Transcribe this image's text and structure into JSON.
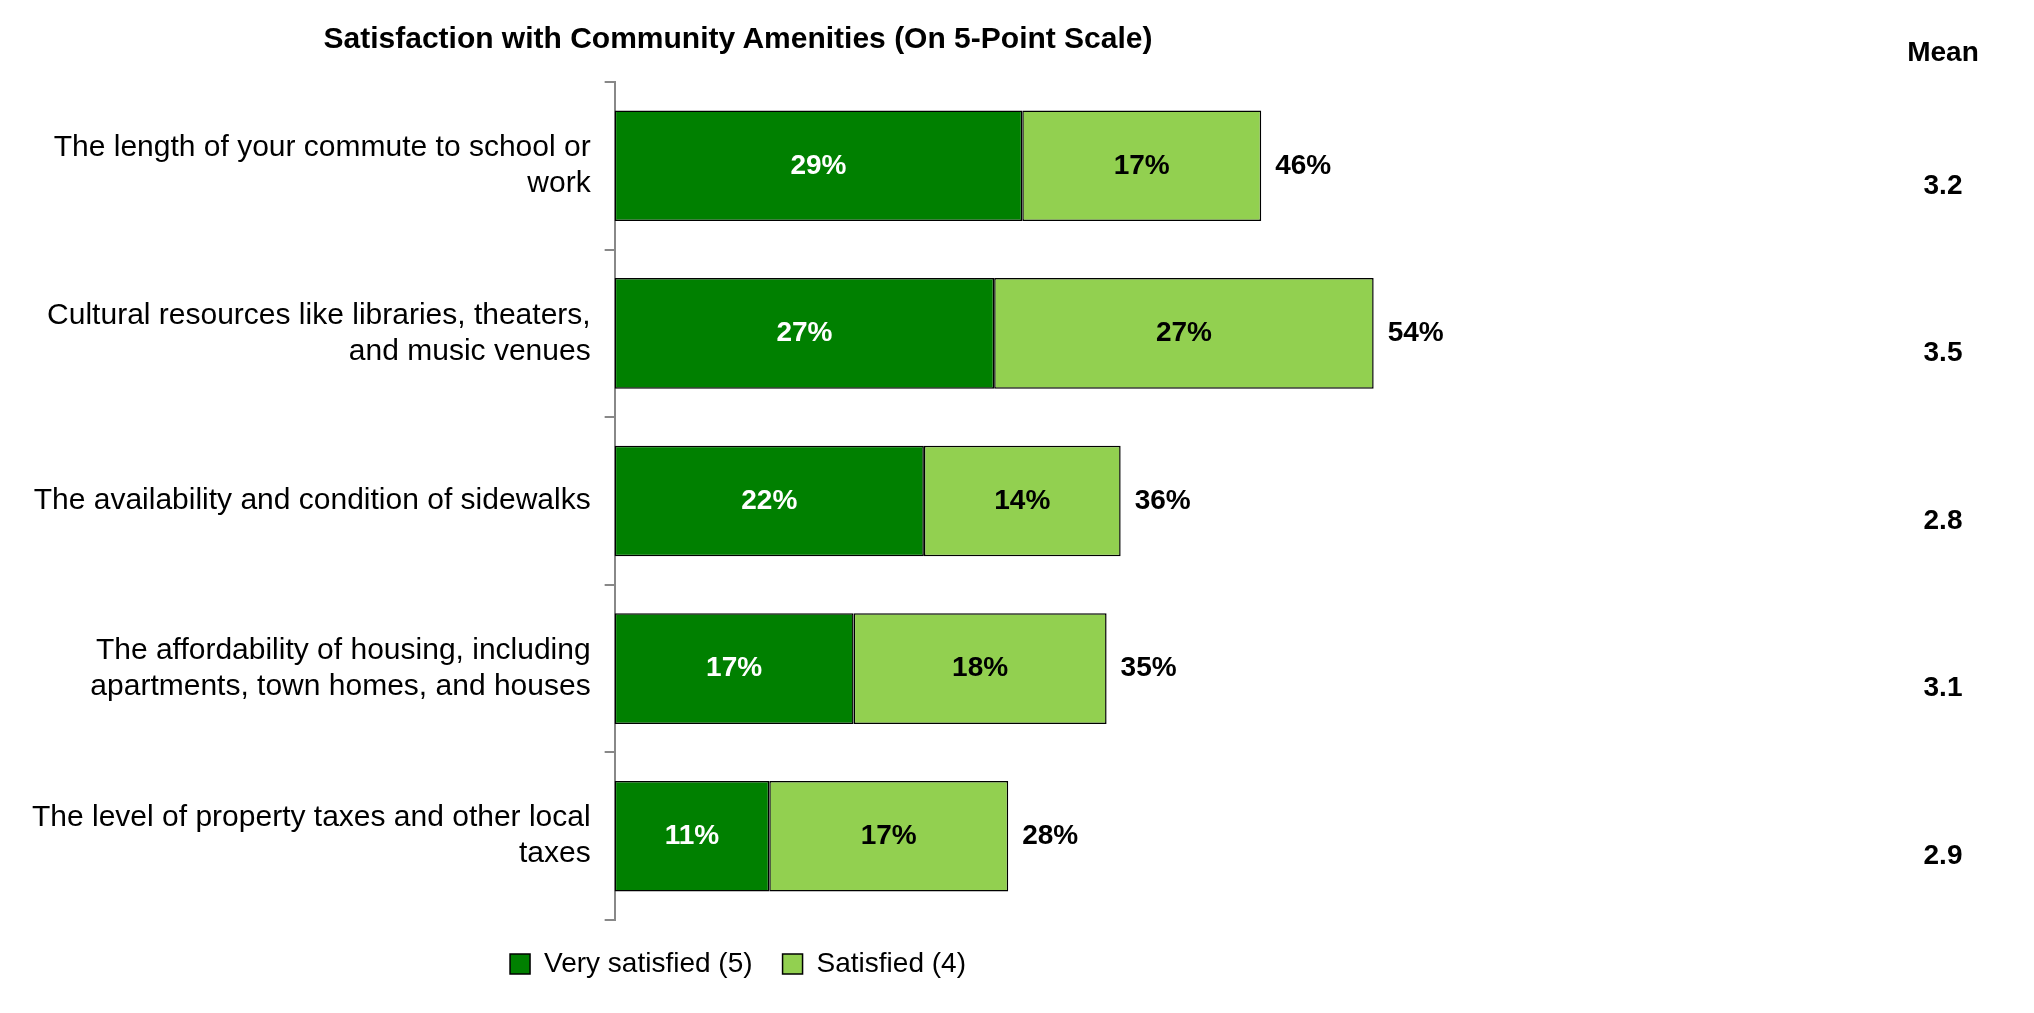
{
  "chart_data": {
    "type": "bar",
    "orientation": "horizontal",
    "stacked": true,
    "title": "Satisfaction with Community Amenities (On 5-Point Scale)",
    "categories": [
      "The length of your commute to school or work",
      "Cultural resources like libraries, theaters, and music venues",
      "The availability and condition of sidewalks",
      "The affordability of housing, including apartments, town homes, and houses",
      "The level of property taxes and other local taxes"
    ],
    "series": [
      {
        "name": "Very satisfied (5)",
        "color": "#008000",
        "values": [
          29,
          27,
          22,
          17,
          11
        ],
        "value_labels": [
          "29%",
          "27%",
          "22%",
          "17%",
          "11%"
        ]
      },
      {
        "name": "Satisfied (4)",
        "color": "#92d050",
        "values": [
          17,
          27,
          14,
          18,
          17
        ],
        "value_labels": [
          "17%",
          "27%",
          "14%",
          "18%",
          "17%"
        ]
      }
    ],
    "totals": [
      "46%",
      "54%",
      "36%",
      "35%",
      "28%"
    ],
    "tick_labels": "y",
    "legend": "bottom",
    "annotations": [
      "Mean",
      "3.2",
      "3.5",
      "2.8",
      "3.1",
      "2.9"
    ]
  }
}
